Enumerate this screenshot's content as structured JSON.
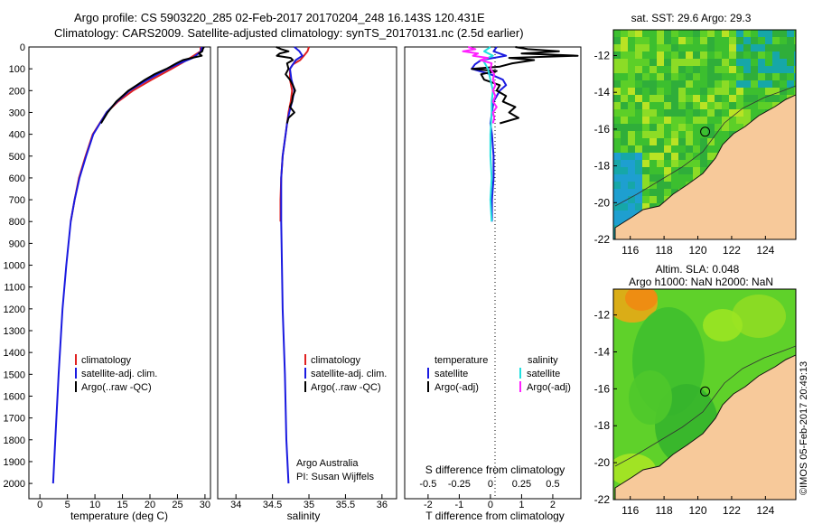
{
  "header": {
    "line1": "Argo profile: CS 5903220_285 02-Feb-2017 20170204_248 16.143S 120.431E",
    "line2": "Climatology: CARS2009. Satellite-adjusted climatology: synTS_20170131.nc (2.5d earlier)"
  },
  "colors": {
    "clim": "#e02020",
    "sat": "#1a1ae0",
    "argo": "#000000",
    "sat_sal": "#20e0e0",
    "argo_sal": "#ff20ff",
    "land": "#f7c99a"
  },
  "depth_axis": {
    "ticks": [
      "0",
      "100",
      "200",
      "300",
      "400",
      "500",
      "600",
      "700",
      "800",
      "900",
      "1000",
      "1100",
      "1200",
      "1300",
      "1400",
      "1500",
      "1600",
      "1700",
      "1800",
      "1900",
      "2000"
    ]
  },
  "chart_data": [
    {
      "type": "line",
      "name": "temperature",
      "xlabel": "temperature (deg C)",
      "xlim": [
        -2,
        31
      ],
      "ylim": [
        0,
        2070
      ],
      "y_reversed": true,
      "xticks": [
        "0",
        "5",
        "10",
        "15",
        "20",
        "25",
        "30"
      ],
      "legend": [
        "climatology",
        "satellite-adj. clim.",
        "Argo(..raw -QC)"
      ],
      "series": [
        {
          "name": "climatology",
          "color": "#e02020",
          "depth": [
            0,
            20,
            50,
            75,
            100,
            150,
            200,
            250,
            300,
            400,
            500,
            600,
            700,
            800
          ],
          "values": [
            29.2,
            29.2,
            27.3,
            25.7,
            23.9,
            20.3,
            16.9,
            14.2,
            12.1,
            9.6,
            8.3,
            7.1,
            6.3,
            5.6
          ]
        },
        {
          "name": "satellite-adj. clim.",
          "color": "#1a1ae0",
          "depth": [
            0,
            20,
            50,
            75,
            100,
            150,
            200,
            250,
            300,
            400,
            500,
            600,
            700,
            800,
            1000,
            1200,
            1500,
            1800,
            2000
          ],
          "values": [
            29.4,
            29.3,
            27.8,
            25.4,
            23.2,
            19.6,
            16.3,
            14.0,
            12.1,
            9.7,
            8.4,
            7.2,
            6.3,
            5.6,
            4.8,
            4.1,
            3.4,
            2.8,
            2.4
          ]
        },
        {
          "name": "Argo(..raw -QC)",
          "color": "#000000",
          "depth": [
            0,
            10,
            20,
            30,
            40,
            50,
            60,
            75,
            100,
            125,
            150,
            175,
            200,
            250,
            300,
            350
          ],
          "values": [
            29.8,
            29.6,
            29.5,
            28.9,
            29.4,
            27.6,
            26.0,
            24.8,
            23.0,
            20.8,
            19.1,
            17.6,
            16.1,
            13.9,
            12.3,
            11.1
          ]
        }
      ]
    },
    {
      "type": "line",
      "name": "salinity",
      "xlabel": "salinity",
      "xlim": [
        33.75,
        36.2
      ],
      "ylim": [
        0,
        2070
      ],
      "y_reversed": true,
      "xticks": [
        "34",
        "34.5",
        "35",
        "35.5",
        "36"
      ],
      "legend": [
        "climatology",
        "satellite-adj. clim.",
        "Argo(..raw -QC)"
      ],
      "annotation_line1": "Argo Australia",
      "annotation_line2": "PI: Susan Wijffels",
      "series": [
        {
          "name": "climatology",
          "color": "#e02020",
          "depth": [
            0,
            20,
            40,
            60,
            80,
            100,
            150,
            200,
            250,
            300,
            350,
            400,
            500,
            600,
            700,
            800
          ],
          "values": [
            35.0,
            34.98,
            34.93,
            34.88,
            34.78,
            34.74,
            34.74,
            34.77,
            34.75,
            34.72,
            34.7,
            34.68,
            34.64,
            34.62,
            34.61,
            34.61
          ]
        },
        {
          "name": "satellite-adj. clim.",
          "color": "#1a1ae0",
          "depth": [
            0,
            20,
            40,
            60,
            80,
            100,
            150,
            200,
            250,
            300,
            350,
            400,
            500,
            600,
            700,
            800,
            1000,
            1200,
            1500,
            1800,
            2000
          ],
          "values": [
            34.8,
            34.87,
            34.91,
            34.82,
            34.78,
            34.74,
            34.76,
            34.8,
            34.77,
            34.73,
            34.7,
            34.68,
            34.64,
            34.62,
            34.62,
            34.62,
            34.63,
            34.64,
            34.67,
            34.69,
            34.72
          ]
        },
        {
          "name": "Argo(..raw -QC)",
          "color": "#000000",
          "depth": [
            0,
            10,
            20,
            30,
            40,
            50,
            60,
            75,
            100,
            125,
            150,
            175,
            200,
            225,
            250,
            275,
            300,
            325,
            350
          ],
          "values": [
            34.55,
            34.62,
            34.72,
            34.6,
            34.56,
            34.75,
            34.78,
            34.7,
            34.72,
            34.68,
            34.74,
            34.78,
            34.81,
            34.78,
            34.77,
            34.74,
            34.8,
            34.72,
            34.7
          ]
        }
      ]
    },
    {
      "type": "line",
      "name": "difference",
      "xlabel": "T difference from climatology",
      "xlabel_top": "S difference from climatology",
      "xlim": [
        -2.75,
        2.9
      ],
      "ylim": [
        0,
        2070
      ],
      "y_reversed": true,
      "xticks": [
        "-2",
        "-1",
        "0",
        "1",
        "2"
      ],
      "xticks_top": [
        "-0.5",
        "-0.25",
        "0",
        "0.25",
        "0.5"
      ],
      "legend_heading_t": "temperature",
      "legend_heading_s": "salinity",
      "legend_t": [
        "satellite",
        "Argo(-adj)"
      ],
      "legend_s": [
        "satellite",
        "Argo(-adj)"
      ],
      "series": [
        {
          "name": "T satellite",
          "color": "#1a1ae0",
          "depth": [
            0,
            20,
            40,
            60,
            80,
            100,
            125,
            150,
            175,
            200,
            250,
            300,
            350,
            400,
            500,
            600,
            700,
            800
          ],
          "values": [
            0.2,
            0.1,
            0.5,
            -0.3,
            -0.5,
            -0.6,
            0.0,
            0.4,
            0.5,
            0.3,
            0.1,
            0.05,
            0.0,
            0.05,
            0.1,
            0.1,
            0.05,
            0.05
          ]
        },
        {
          "name": "T Argo(-adj)",
          "color": "#000000",
          "depth": [
            0,
            10,
            20,
            30,
            40,
            50,
            60,
            75,
            90,
            100,
            110,
            125,
            150,
            175,
            200,
            225,
            250,
            275,
            300,
            325,
            350
          ],
          "values": [
            0.8,
            1.2,
            2.2,
            1.0,
            2.8,
            0.6,
            1.4,
            0.7,
            0.3,
            -0.6,
            0.2,
            -0.3,
            -0.2,
            0.3,
            0.2,
            0.5,
            0.4,
            0.8,
            0.6,
            0.9,
            0.3
          ]
        },
        {
          "name": "S satellite",
          "color": "#20e0e0",
          "depth": [
            0,
            20,
            40,
            60,
            80,
            100,
            150,
            200,
            250,
            300,
            400,
            500,
            600,
            700,
            800
          ],
          "values": [
            0.0,
            -0.05,
            0.02,
            -0.06,
            -0.04,
            -0.02,
            0.0,
            0.02,
            0.01,
            0.01,
            0.0,
            0.0,
            0.01,
            0.0,
            0.01
          ]
        },
        {
          "name": "S Argo(-adj)",
          "color": "#ff20ff",
          "depth": [
            0,
            10,
            20,
            30,
            40,
            50,
            60,
            75,
            100,
            125,
            150,
            175,
            200,
            225,
            250,
            275,
            300,
            325,
            350
          ],
          "values": [
            -0.18,
            -0.12,
            -0.22,
            -0.1,
            -0.14,
            -0.02,
            -0.08,
            0.01,
            0.0,
            0.03,
            0.02,
            0.04,
            0.02,
            0.04,
            0.02,
            0.05,
            0.02,
            0.03,
            0.02
          ]
        }
      ]
    },
    {
      "type": "heatmap",
      "name": "sst_map",
      "title": "sat. SST: 29.6 Argo: 29.3",
      "xlim": [
        115,
        125.8
      ],
      "ylim": [
        -22,
        -10.6
      ],
      "xticks": [
        "116",
        "118",
        "120",
        "122",
        "124"
      ],
      "yticks": [
        "-12",
        "-14",
        "-16",
        "-18",
        "-20",
        "-22"
      ],
      "argo_marker": {
        "lon": 120.431,
        "lat": -16.143
      }
    },
    {
      "type": "heatmap",
      "name": "sla_map",
      "title_line1": "Altim. SLA: 0.048",
      "title_line2": "Argo h1000: NaN h2000: NaN",
      "xlim": [
        115,
        125.8
      ],
      "ylim": [
        -22,
        -10.6
      ],
      "xticks": [
        "116",
        "118",
        "120",
        "122",
        "124"
      ],
      "yticks": [
        "-12",
        "-14",
        "-16",
        "-18",
        "-20",
        "-22"
      ],
      "argo_marker": {
        "lon": 120.431,
        "lat": -16.143
      }
    }
  ],
  "footer": {
    "timestamp": "©IMOS 05-Feb-2017 20:49:13"
  }
}
